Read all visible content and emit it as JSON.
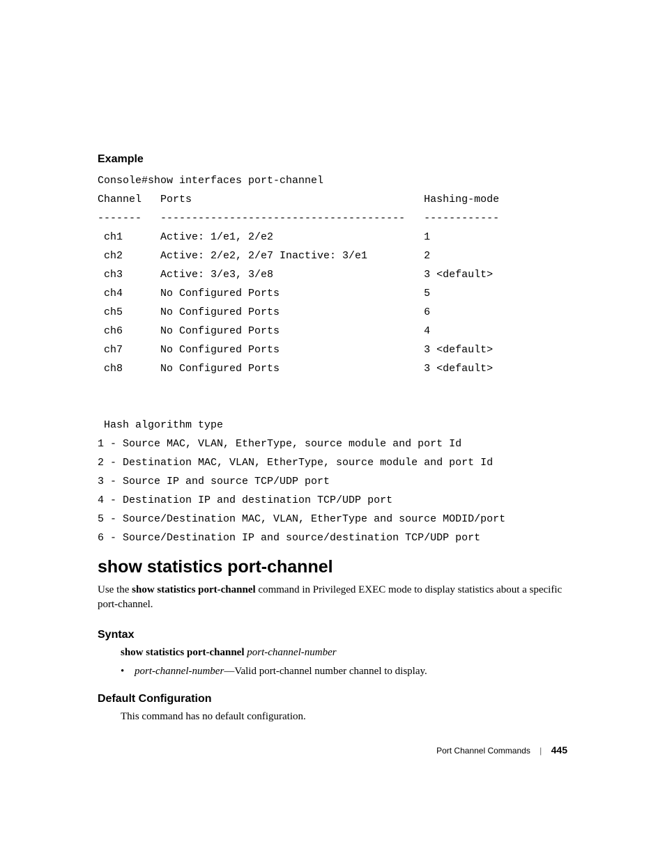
{
  "example": {
    "label": "Example",
    "command": "Console#show interfaces port-channel",
    "table_header_channel": "Channel",
    "table_header_ports": "Ports",
    "table_header_hashing": "Hashing-mode",
    "sep_channel": "-------",
    "sep_ports": "---------------------------------------",
    "sep_hashing": "------------",
    "rows": [
      {
        "ch": " ch1",
        "ports": "Active: 1/e1, 2/e2",
        "hash": "1"
      },
      {
        "ch": " ch2",
        "ports": "Active: 2/e2, 2/e7 Inactive: 3/e1",
        "hash": "2"
      },
      {
        "ch": " ch3",
        "ports": "Active: 3/e3, 3/e8",
        "hash": "3 <default>"
      },
      {
        "ch": " ch4",
        "ports": "No Configured Ports",
        "hash": "5"
      },
      {
        "ch": " ch5",
        "ports": "No Configured Ports",
        "hash": "6"
      },
      {
        "ch": " ch6",
        "ports": "No Configured Ports",
        "hash": "4"
      },
      {
        "ch": " ch7",
        "ports": "No Configured Ports",
        "hash": "3 <default>"
      },
      {
        "ch": " ch8",
        "ports": "No Configured Ports",
        "hash": "3 <default>"
      }
    ],
    "hash_title": " Hash algorithm type",
    "hash_lines": [
      "1 - Source MAC, VLAN, EtherType, source module and port Id",
      "2 - Destination MAC, VLAN, EtherType, source module and port Id",
      "3 - Source IP and source TCP/UDP port",
      "4 - Destination IP and destination TCP/UDP port",
      "5 - Source/Destination MAC, VLAN, EtherType and source MODID/port",
      "6 - Source/Destination IP and source/destination TCP/UDP port"
    ]
  },
  "heading": "show statistics port-channel",
  "description_prefix": "Use the ",
  "description_bold": "show statistics port-channel",
  "description_suffix": " command in Privileged EXEC mode to display statistics about a specific port-channel.",
  "syntax": {
    "label": "Syntax",
    "cmd_bold": "show statistics port-channel ",
    "cmd_italic": "port-channel-number",
    "bullet_italic": "port-channel-number",
    "bullet_rest": "—Valid port-channel number channel to display."
  },
  "default_config": {
    "label": "Default Configuration",
    "text": "This command has no default configuration."
  },
  "footer": {
    "section": "Port Channel Commands",
    "page": "445"
  }
}
